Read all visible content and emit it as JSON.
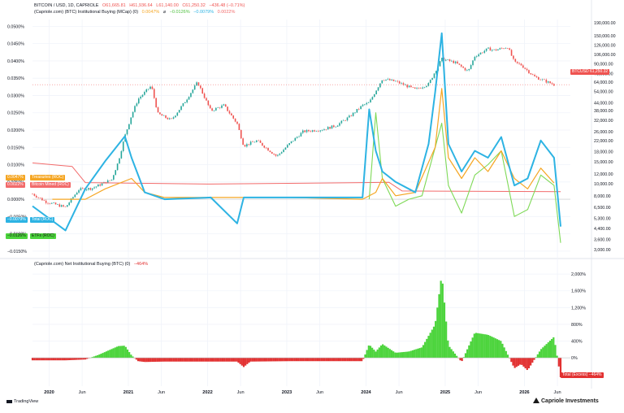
{
  "header": {
    "line1": {
      "symbol": "BITCOIN / USD, 1D, CAPRIOLE",
      "o": "O61,665.81",
      "h": "H61,936.64",
      "l": "L61,140.00",
      "c": "C61,250.32",
      "chg": "−436.48 (−0.71%)"
    },
    "line2": {
      "study": "(Capriole.com) (BTC) Institutional Buying (MCap) (0)",
      "v1": "0.0047%",
      "sep": "⌀",
      "v2": "−0.0126%",
      "v3": "−0.0079%",
      "v4": "0.0022%"
    },
    "pane2": {
      "study": "(Capriole.com) Net Institutional Buying (BTC) (0)",
      "value": "−464%"
    }
  },
  "tags": {
    "btcusd": "BTCUSD",
    "btcusd_price": "61,250.32",
    "treasuries_val": "0.0047%",
    "treasuries": "Treasuries (ROC)",
    "mined_val": "0.0022%",
    "mined": "Bitcoin Mined (ROC)",
    "total_val": "−0.0079%",
    "total": "Total (ROC)",
    "etfs_val": "−0.0126%",
    "etfs": "ETFs (ROC)",
    "excess": "Total (Excess)",
    "excess_val": "−464%"
  },
  "colors": {
    "up": "#26a69a",
    "down": "#ef5350",
    "treasuries": "#f5a623",
    "mined": "#f26b6b",
    "total": "#2db3e3",
    "etfs": "#7ed957",
    "hist_pos": "#4cd43c",
    "hist_neg": "#e23131",
    "grid": "#f0f3fa"
  },
  "footer": {
    "tradingview": "TradingView",
    "brand": "Capriole Investments"
  },
  "chart_data": [
    {
      "type": "line",
      "title": "BITCOIN / USD, 1D, CAPRIOLE",
      "scale": "log",
      "y_axis": "right",
      "y_ticks": [
        "190,000.00",
        "150,000.00",
        "126,000.00",
        "106,000.00",
        "90,000.00",
        "75,000.00",
        "64,000.00",
        "54,000.00",
        "44,000.00",
        "38,000.00",
        "32,000.00",
        "26,000.00",
        "22,000.00",
        "18,000.00",
        "15,000.00",
        "12,000.00",
        "10,000.00",
        "8,000.00",
        "6,500.00",
        "5,300.00",
        "4,400.00",
        "3,600.00",
        "3,000.00"
      ],
      "series": [
        {
          "name": "BTCUSD",
          "x": [
            "2019-10",
            "2019-12",
            "2020-03",
            "2020-05",
            "2020-07",
            "2020-10",
            "2020-11",
            "2020-12",
            "2021-01",
            "2021-02",
            "2021-04",
            "2021-05",
            "2021-07",
            "2021-09",
            "2021-11",
            "2022-01",
            "2022-03",
            "2022-05",
            "2022-06",
            "2022-08",
            "2022-11",
            "2023-01",
            "2023-03",
            "2023-06",
            "2023-08",
            "2023-10",
            "2023-12",
            "2024-01",
            "2024-03",
            "2024-05",
            "2024-08",
            "2024-10",
            "2024-12",
            "2025-02",
            "2025-04",
            "2025-05",
            "2025-07",
            "2025-08",
            "2025-10",
            "2025-11",
            "2025-12",
            "2026-02",
            "2026-05"
          ],
          "values": [
            8300,
            7200,
            6500,
            9000,
            9200,
            10800,
            15000,
            24000,
            35000,
            47000,
            60000,
            36000,
            32000,
            44000,
            64000,
            38000,
            42000,
            30000,
            20000,
            22000,
            16500,
            21000,
            26000,
            27000,
            29000,
            34000,
            42000,
            44000,
            68000,
            65000,
            56000,
            62000,
            98000,
            92000,
            78000,
            103000,
            118000,
            115000,
            122000,
            92000,
            88000,
            71000,
            61250
          ]
        }
      ]
    },
    {
      "type": "line",
      "title": "(Capriole.com) (BTC) Institutional Buying (MCap) (0)",
      "y_axis": "left",
      "y_ticks": [
        "0.0500%",
        "0.0450%",
        "0.0400%",
        "0.0350%",
        "0.0300%",
        "0.0250%",
        "0.0200%",
        "0.0150%",
        "0.0100%",
        "0.0050%",
        "0.0000%",
        "−0.0050%",
        "−0.0100%",
        "−0.0150%"
      ],
      "ylim": [
        -0.0155,
        0.0515
      ],
      "x_labels": [
        "2020",
        "Jun",
        "2021",
        "Jun",
        "2022",
        "Jun",
        "2023",
        "Jun",
        "2024",
        "Jun",
        "2025",
        "Jun",
        "2026",
        "Jun"
      ],
      "series": [
        {
          "name": "Treasuries (ROC)",
          "x": [
            "2020-01",
            "2020-06",
            "2020-09",
            "2021-01",
            "2021-03",
            "2021-06",
            "2022-01",
            "2023-01",
            "2023-12",
            "2024-02",
            "2024-03",
            "2024-05",
            "2024-08",
            "2024-11",
            "2024-12",
            "2025-01",
            "2025-03",
            "2025-05",
            "2025-07",
            "2025-09",
            "2025-11",
            "2026-01",
            "2026-03",
            "2026-05"
          ],
          "values": [
            0,
            0,
            0.003,
            0.006,
            0.002,
            0.0005,
            0.0005,
            0.0005,
            0,
            0.002,
            0.006,
            0.001,
            0.002,
            0.015,
            0.032,
            0.012,
            0.006,
            0.012,
            0.008,
            0.014,
            0.006,
            0.003,
            0.009,
            0.0047
          ]
        },
        {
          "name": "Bitcoin Mined (ROC)",
          "x": [
            "2019-10",
            "2020-04",
            "2020-06",
            "2022-01",
            "2023-12",
            "2024-04",
            "2024-06",
            "2026-06"
          ],
          "values": [
            0.0105,
            0.0095,
            0.0048,
            0.0044,
            0.0048,
            0.0049,
            0.0024,
            0.0022
          ]
        },
        {
          "name": "Total (ROC)",
          "x": [
            "2019-10",
            "2020-03",
            "2020-06",
            "2020-09",
            "2020-12",
            "2021-01",
            "2021-03",
            "2021-06",
            "2022-01",
            "2022-05",
            "2022-06",
            "2023-01",
            "2023-12",
            "2024-01",
            "2024-02",
            "2024-03",
            "2024-05",
            "2024-08",
            "2024-10",
            "2024-11",
            "2024-12",
            "2025-01",
            "2025-03",
            "2025-05",
            "2025-07",
            "2025-09",
            "2025-11",
            "2026-01",
            "2026-03",
            "2026-05",
            "2026-06"
          ],
          "values": [
            -0.002,
            -0.009,
            0.003,
            0.011,
            0.0182,
            0.012,
            0.002,
            0,
            0.0005,
            -0.007,
            0.0005,
            0.0005,
            0.0005,
            0.026,
            0.014,
            0.008,
            0.005,
            0.002,
            0.016,
            0.031,
            0.048,
            0.016,
            0.008,
            0.014,
            0.012,
            0.018,
            0.004,
            0.006,
            0.017,
            0.012,
            -0.0079
          ]
        },
        {
          "name": "ETFs (ROC)",
          "x": [
            "2024-01",
            "2024-02",
            "2024-03",
            "2024-05",
            "2024-07",
            "2024-09",
            "2024-11",
            "2024-12",
            "2025-01",
            "2025-03",
            "2025-05",
            "2025-07",
            "2025-09",
            "2025-11",
            "2026-01",
            "2026-03",
            "2026-05",
            "2026-06"
          ],
          "values": [
            0,
            0.025,
            0.006,
            -0.002,
            0.0,
            0.001,
            0.015,
            0.022,
            0.004,
            -0.004,
            0.007,
            0.01,
            0.014,
            -0.005,
            -0.003,
            0.007,
            0.004,
            -0.0126
          ]
        }
      ]
    },
    {
      "type": "area",
      "title": "(Capriole.com) Net Institutional Buying (BTC) (0)",
      "y_axis": "right",
      "y_ticks": [
        "2,000%",
        "1,600%",
        "1,200%",
        "800%",
        "400%",
        "0%"
      ],
      "ylim": [
        -600,
        2100
      ],
      "series": [
        {
          "name": "Total (Excess)",
          "x": [
            "2019-10",
            "2020-03",
            "2020-06",
            "2020-08",
            "2020-11",
            "2020-12",
            "2021-01",
            "2021-02",
            "2021-03",
            "2021-06",
            "2022-01",
            "2022-05",
            "2022-06",
            "2022-07",
            "2023-01",
            "2023-06",
            "2023-12",
            "2024-01",
            "2024-02",
            "2024-03",
            "2024-05",
            "2024-07",
            "2024-09",
            "2024-11",
            "2024-12",
            "2025-01",
            "2025-03",
            "2025-05",
            "2025-07",
            "2025-09",
            "2025-11",
            "2025-12",
            "2026-01",
            "2026-03",
            "2026-05",
            "2026-06"
          ],
          "values": [
            -60,
            -60,
            -40,
            70,
            280,
            290,
            60,
            -80,
            -100,
            -90,
            -90,
            -90,
            -220,
            -90,
            -80,
            -80,
            -80,
            320,
            150,
            330,
            120,
            150,
            250,
            800,
            2000,
            300,
            -100,
            600,
            550,
            400,
            -250,
            -150,
            -300,
            200,
            500,
            -464
          ]
        }
      ]
    }
  ]
}
